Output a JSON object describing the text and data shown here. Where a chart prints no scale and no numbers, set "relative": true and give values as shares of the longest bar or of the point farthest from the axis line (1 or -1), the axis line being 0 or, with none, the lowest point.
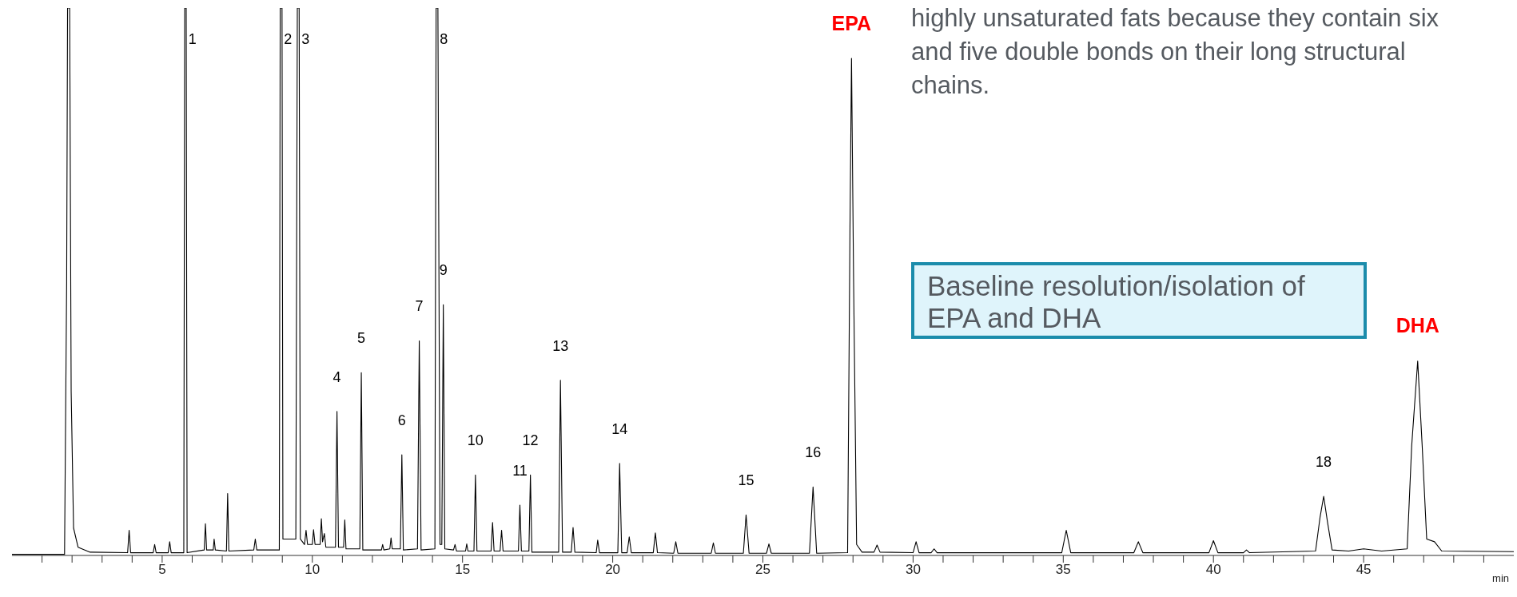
{
  "chart_data": {
    "type": "line",
    "relative": true,
    "xlabel": "min",
    "xlim": [
      0,
      50
    ],
    "xticks": [
      {
        "value": 1,
        "label": null
      },
      {
        "value": 2,
        "label": null
      },
      {
        "value": 3,
        "label": null
      },
      {
        "value": 4,
        "label": null
      },
      5,
      {
        "value": 6,
        "label": null
      },
      {
        "value": 7,
        "label": null
      },
      {
        "value": 8,
        "label": null
      },
      {
        "value": 9,
        "label": null
      },
      10,
      {
        "value": 11,
        "label": null
      },
      {
        "value": 12,
        "label": null
      },
      {
        "value": 13,
        "label": null
      },
      {
        "value": 14,
        "label": null
      },
      15,
      {
        "value": 16,
        "label": null
      },
      {
        "value": 17,
        "label": null
      },
      {
        "value": 18,
        "label": null
      },
      {
        "value": 19,
        "label": null
      },
      20,
      {
        "value": 21,
        "label": null
      },
      {
        "value": 22,
        "label": null
      },
      {
        "value": 23,
        "label": null
      },
      {
        "value": 24,
        "label": null
      },
      25,
      {
        "value": 26,
        "label": null
      },
      {
        "value": 27,
        "label": null
      },
      {
        "value": 28,
        "label": null
      },
      {
        "value": 29,
        "label": null
      },
      30,
      {
        "value": 31,
        "label": null
      },
      {
        "value": 32,
        "label": null
      },
      {
        "value": 33,
        "label": null
      },
      {
        "value": 34,
        "label": null
      },
      35,
      {
        "value": 36,
        "label": null
      },
      {
        "value": 37,
        "label": null
      },
      {
        "value": 38,
        "label": null
      },
      {
        "value": 39,
        "label": null
      },
      40,
      {
        "value": 41,
        "label": null
      },
      {
        "value": 42,
        "label": null
      },
      {
        "value": 43,
        "label": null
      },
      {
        "value": 44,
        "label": null
      },
      45,
      {
        "value": 46,
        "label": null
      },
      {
        "value": 47,
        "label": null
      },
      {
        "value": 48,
        "label": null
      },
      {
        "value": 49,
        "label": null
      }
    ],
    "marker": "none",
    "line_style": "solid",
    "series": [
      {
        "color": "#000000",
        "x": [
          0,
          1.75,
          1.82,
          1.85,
          1.92,
          1.97,
          2.05,
          2.2,
          2.6,
          3.85,
          3.9,
          3.95,
          4.7,
          4.75,
          4.8,
          5.2,
          5.25,
          5.3,
          5.72,
          5.75,
          5.8,
          5.83,
          6.4,
          6.44,
          6.48,
          6.7,
          6.73,
          6.77,
          7.14,
          7.18,
          7.22,
          8.05,
          8.1,
          8.15,
          8.9,
          8.93,
          8.99,
          9.02,
          9.45,
          9.5,
          9.56,
          9.6,
          9.74,
          9.79,
          9.84,
          10.0,
          10.04,
          10.09,
          10.26,
          10.3,
          10.34,
          10.4,
          10.45,
          10.77,
          10.82,
          10.87,
          11.04,
          11.08,
          11.12,
          11.58,
          11.63,
          11.68,
          12.3,
          12.34,
          12.38,
          12.58,
          12.62,
          12.66,
          12.93,
          12.98,
          13.03,
          13.5,
          13.56,
          13.62,
          14.08,
          14.12,
          14.18,
          14.25,
          14.31,
          14.36,
          14.41,
          14.7,
          14.75,
          14.8,
          15.1,
          15.14,
          15.18,
          15.38,
          15.43,
          15.48,
          15.95,
          16.0,
          16.05,
          16.25,
          16.3,
          16.35,
          16.86,
          16.91,
          16.96,
          17.21,
          17.26,
          17.31,
          18.2,
          18.26,
          18.33,
          18.62,
          18.68,
          18.74,
          19.45,
          19.5,
          19.56,
          20.17,
          20.23,
          20.3,
          20.48,
          20.55,
          20.62,
          21.35,
          21.42,
          21.49,
          22.03,
          22.1,
          22.17,
          23.28,
          23.35,
          23.42,
          24.35,
          24.44,
          24.54,
          25.12,
          25.2,
          25.28,
          26.55,
          26.67,
          26.79,
          27.82,
          27.9,
          27.95,
          28.02,
          28.12,
          28.3,
          28.7,
          28.8,
          28.9,
          30.0,
          30.1,
          30.2,
          30.6,
          30.7,
          30.8,
          34.95,
          35.1,
          35.25,
          37.35,
          37.5,
          37.65,
          39.85,
          40.0,
          40.15,
          41,
          41.1,
          41.2,
          43.4,
          43.55,
          43.67,
          43.8,
          43.95,
          44.5,
          45,
          45.6,
          46.45,
          46.6,
          46.8,
          46.95,
          47.1,
          47.36,
          47.6,
          50
        ],
        "values": [
          0.002,
          0.002,
          0.5,
          1,
          1,
          0.3,
          0.05,
          0.015,
          0.006,
          0.005,
          0.046,
          0.005,
          0.005,
          0.02,
          0.005,
          0.005,
          0.025,
          0.005,
          0.005,
          1,
          1,
          0.005,
          0.01,
          0.058,
          0.01,
          0.01,
          0.03,
          0.01,
          0.008,
          0.113,
          0.008,
          0.01,
          0.03,
          0.01,
          0.01,
          1,
          1,
          0.03,
          0.03,
          1,
          1,
          0.03,
          0.02,
          0.046,
          0.02,
          0.02,
          0.047,
          0.02,
          0.02,
          0.067,
          0.025,
          0.04,
          0.015,
          0.015,
          0.263,
          0.015,
          0.015,
          0.065,
          0.012,
          0.012,
          0.334,
          0.01,
          0.01,
          0.02,
          0.01,
          0.012,
          0.032,
          0.012,
          0.012,
          0.184,
          0.01,
          0.012,
          0.392,
          0.01,
          0.012,
          1,
          1,
          0.02,
          0.02,
          0.458,
          0.012,
          0.01,
          0.02,
          0.008,
          0.008,
          0.021,
          0.008,
          0.008,
          0.147,
          0.008,
          0.008,
          0.06,
          0.008,
          0.008,
          0.046,
          0.008,
          0.008,
          0.092,
          0.008,
          0.008,
          0.147,
          0.006,
          0.006,
          0.32,
          0.006,
          0.006,
          0.051,
          0.006,
          0.005,
          0.028,
          0.005,
          0.005,
          0.168,
          0.005,
          0.005,
          0.034,
          0.005,
          0.005,
          0.041,
          0.005,
          0.004,
          0.025,
          0.004,
          0.004,
          0.023,
          0.004,
          0.004,
          0.074,
          0.004,
          0.004,
          0.021,
          0.004,
          0.004,
          0.125,
          0.004,
          0.005,
          0.6,
          0.908,
          0.5,
          0.02,
          0.006,
          0.006,
          0.019,
          0.006,
          0.005,
          0.025,
          0.005,
          0.005,
          0.012,
          0.005,
          0.005,
          0.046,
          0.005,
          0.005,
          0.025,
          0.005,
          0.005,
          0.027,
          0.005,
          0.005,
          0.01,
          0.005,
          0.008,
          0.07,
          0.108,
          0.06,
          0.01,
          0.008,
          0.012,
          0.008,
          0.012,
          0.2,
          0.355,
          0.2,
          0.03,
          0.025,
          0.008,
          0.007
        ]
      }
    ],
    "annotations": [
      "highly unsaturated fats because they contain six and five double bonds on their long structural chains.",
      "Baseline resolution/isolation of EPA and DHA",
      {
        "text": "1",
        "x": 5.77,
        "y": 1
      },
      {
        "text": "2",
        "x": 8.95,
        "y": 1
      },
      {
        "text": "3",
        "x": 9.53,
        "y": 1
      },
      {
        "text": "4",
        "x": 10.82,
        "y": 0.263
      },
      {
        "text": "5",
        "x": 11.63,
        "y": 0.334
      },
      {
        "text": "6",
        "x": 12.98,
        "y": 0.184
      },
      {
        "text": "7",
        "x": 13.56,
        "y": 0.392
      },
      {
        "text": "8",
        "x": 14.14,
        "y": 1
      },
      {
        "text": "9",
        "x": 14.36,
        "y": 0.458
      },
      {
        "text": "10",
        "x": 15.43,
        "y": 0.147
      },
      {
        "text": "11",
        "x": 16.91,
        "y": 0.092
      },
      {
        "text": "12",
        "x": 17.26,
        "y": 0.147
      },
      {
        "text": "13",
        "x": 18.26,
        "y": 0.32
      },
      {
        "text": "14",
        "x": 20.23,
        "y": 0.168
      },
      {
        "text": "15",
        "x": 24.44,
        "y": 0.074
      },
      {
        "text": "16",
        "x": 26.67,
        "y": 0.125
      },
      {
        "text": "18",
        "x": 43.67,
        "y": 0.108
      },
      {
        "text": "EPA",
        "x": 27.95,
        "y": 0.908
      },
      {
        "text": "DHA",
        "x": 46.8,
        "y": 0.355
      }
    ]
  }
}
